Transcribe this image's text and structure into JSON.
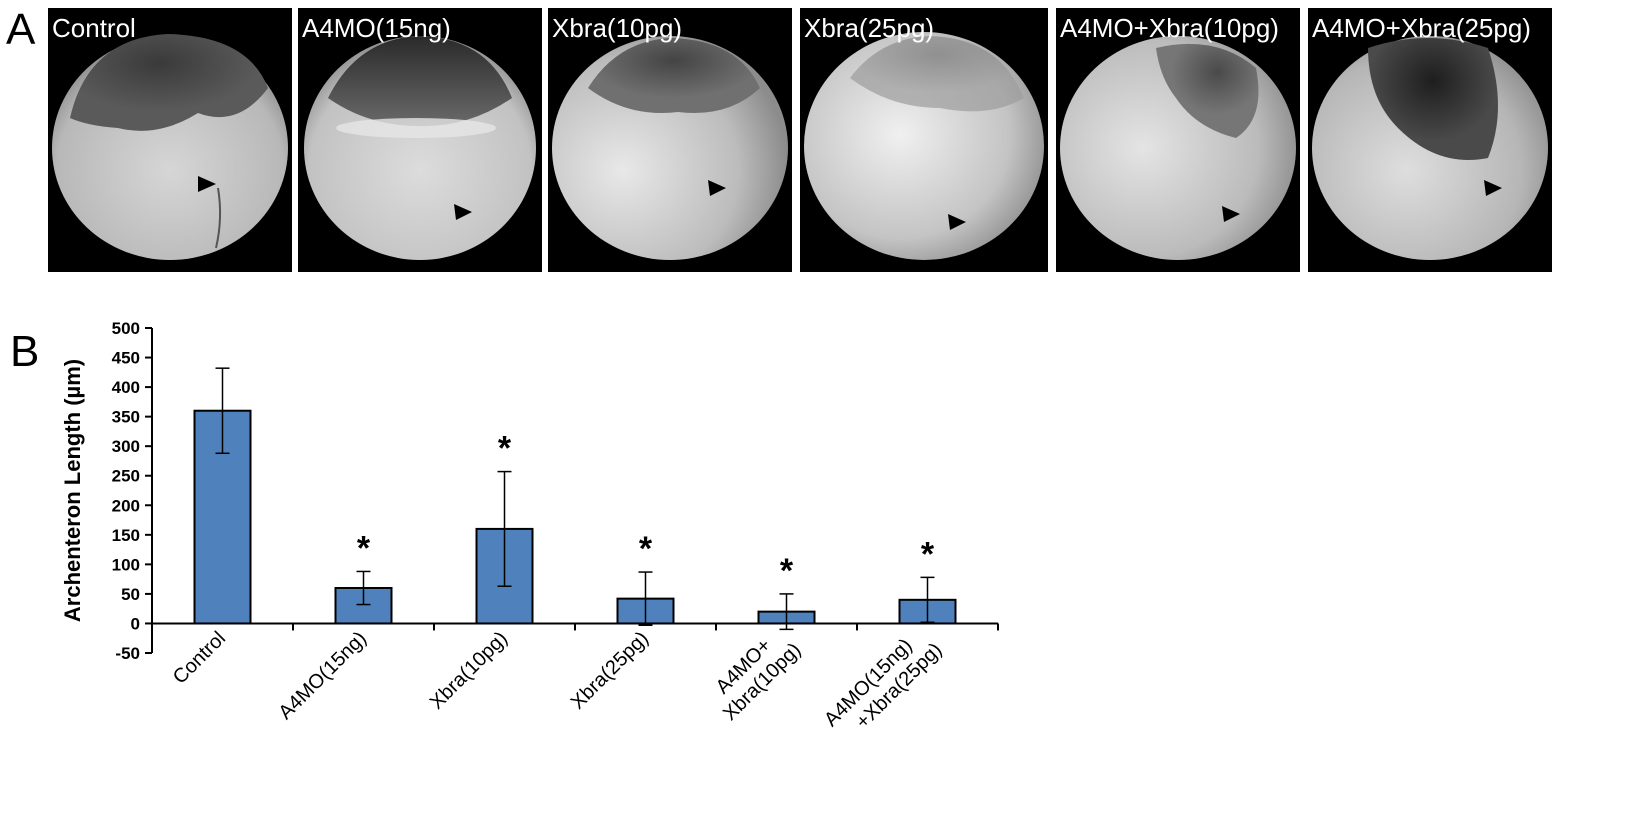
{
  "figure": {
    "panel_a_letter": "A",
    "panel_b_letter": "B"
  },
  "micrographs": [
    {
      "label": "Control"
    },
    {
      "label": "A4MO(15ng)"
    },
    {
      "label": "Xbra(10pg)"
    },
    {
      "label": "Xbra(25pg)"
    },
    {
      "label": "A4MO+Xbra(10pg)"
    },
    {
      "label": "A4MO+Xbra(25pg)"
    }
  ],
  "chart_data": {
    "type": "bar",
    "title": "",
    "xlabel": "",
    "ylabel": "Archenteron Length (µm)",
    "ylim": [
      -50,
      500
    ],
    "yticks": [
      -50,
      0,
      50,
      100,
      150,
      200,
      250,
      300,
      350,
      400,
      450,
      500
    ],
    "ytick_labels": [
      "-50",
      "0",
      "50",
      "100",
      "150",
      "200",
      "250",
      "300",
      "350",
      "400",
      "450",
      "500"
    ],
    "categories": [
      {
        "lines": [
          "Control"
        ]
      },
      {
        "lines": [
          "A4MO(15ng)"
        ]
      },
      {
        "lines": [
          "Xbra(10pg)"
        ]
      },
      {
        "lines": [
          "Xbra(25pg)"
        ]
      },
      {
        "lines": [
          "A4MO+",
          "Xbra(10pg)"
        ]
      },
      {
        "lines": [
          "A4MO(15ng)",
          "+Xbra(25pg)"
        ]
      }
    ],
    "values": [
      360,
      60,
      160,
      42,
      20,
      40
    ],
    "errors": [
      72,
      28,
      97,
      45,
      30,
      38
    ],
    "significance": [
      "",
      "*",
      "*",
      "*",
      "*",
      "*"
    ],
    "bar_color": "#4f81bd",
    "grid": false,
    "legend": "none"
  }
}
